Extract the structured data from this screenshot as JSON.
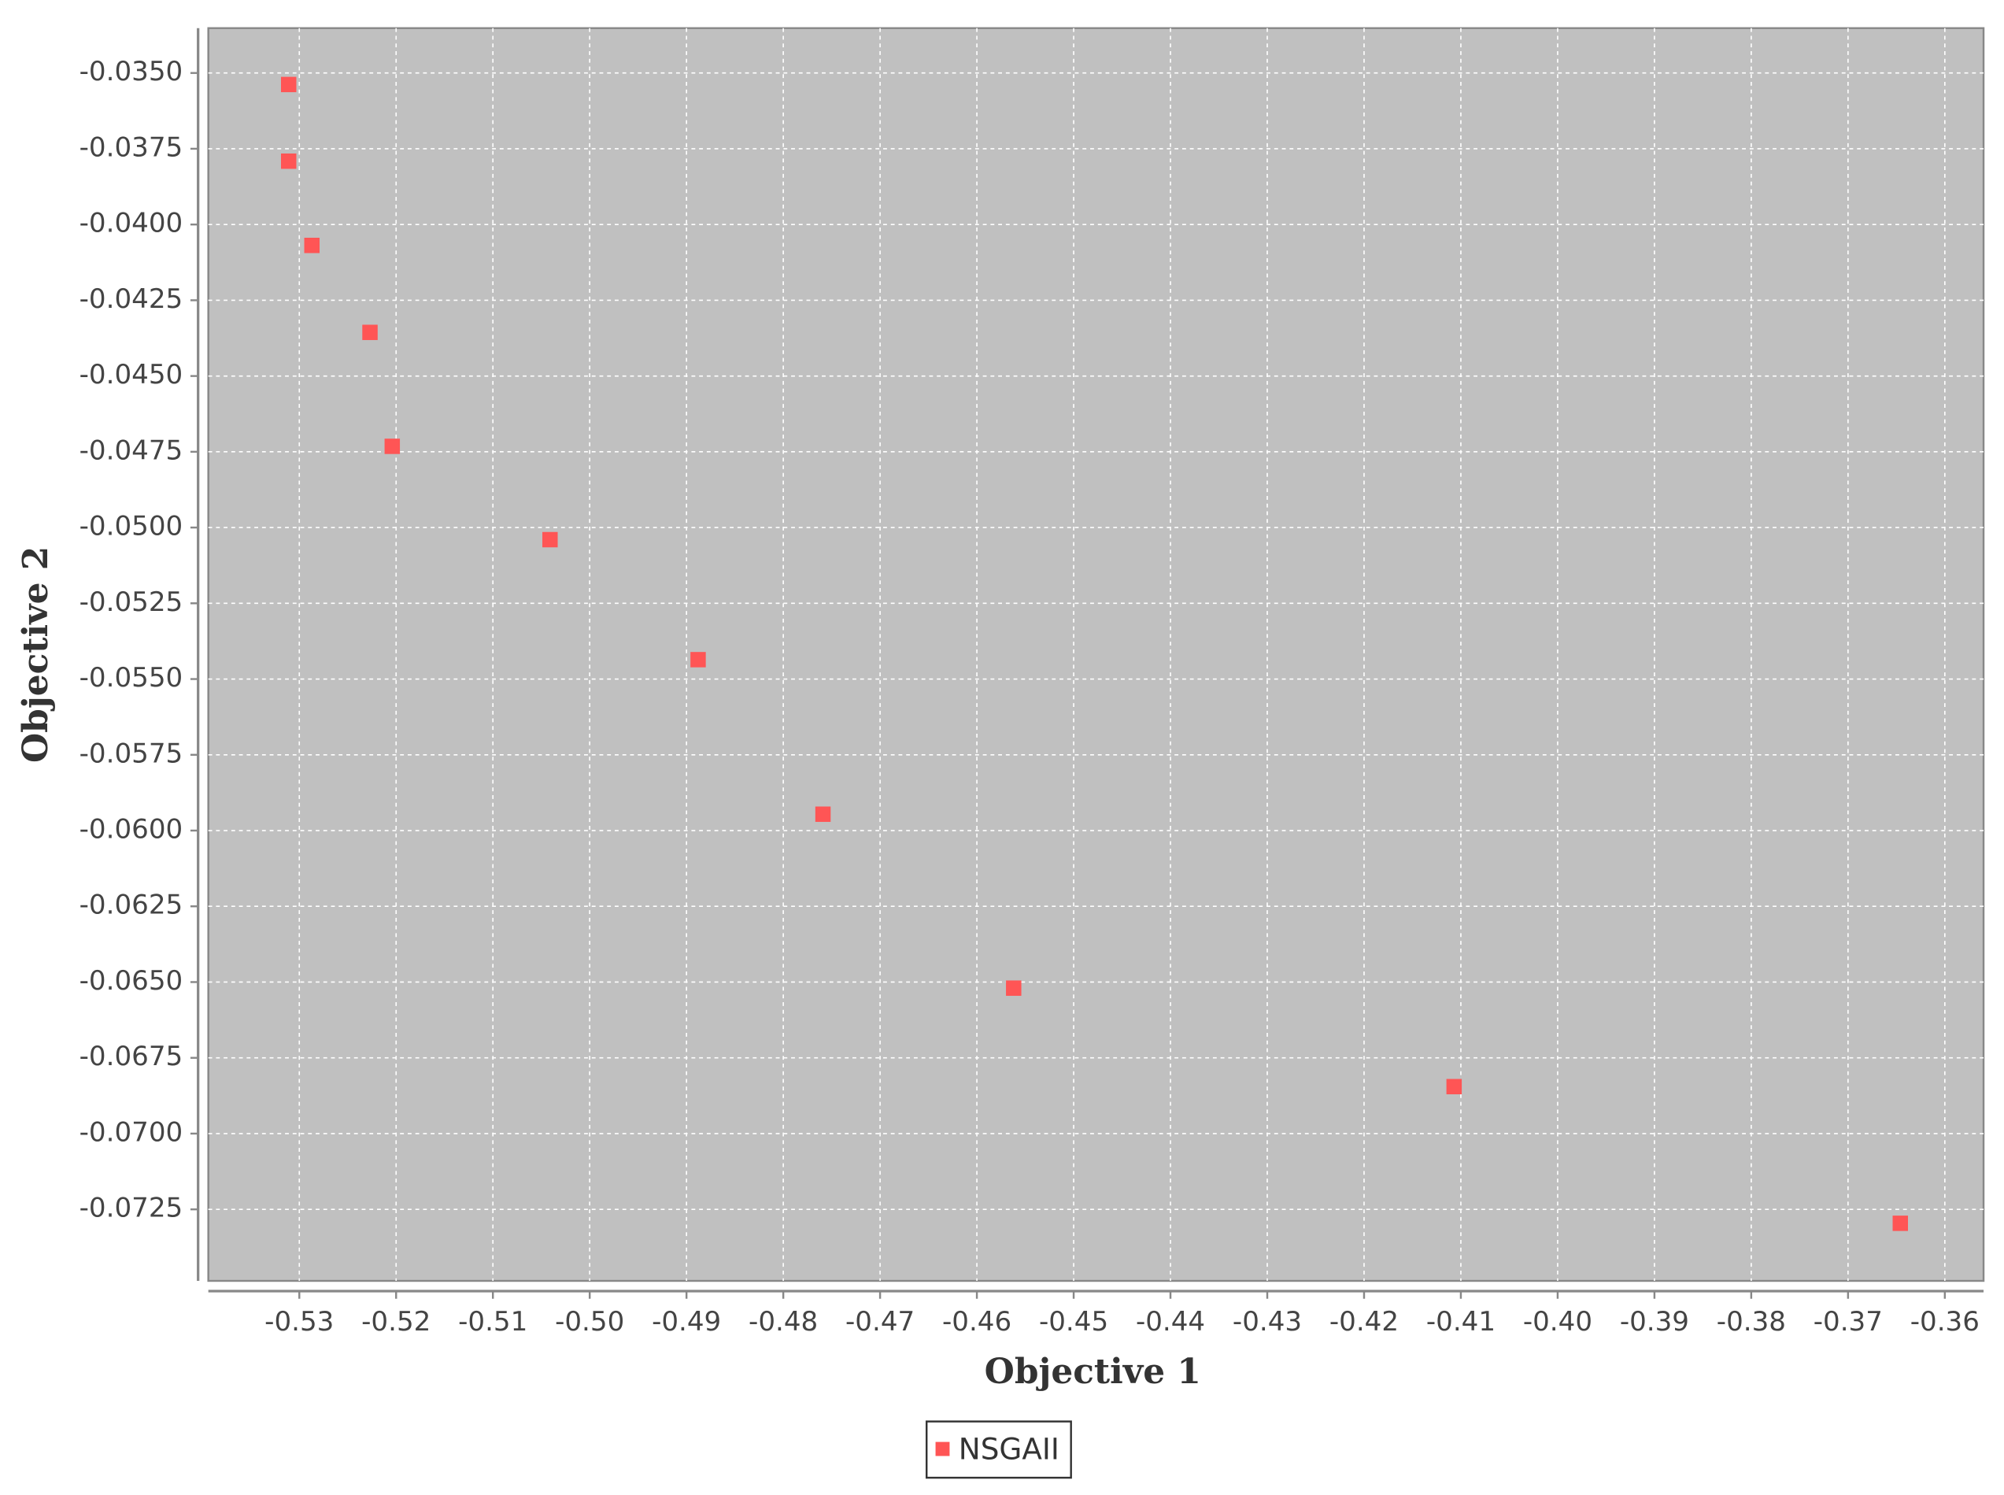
{
  "chart_data": {
    "type": "scatter",
    "x_label": "Objective 1",
    "y_label": "Objective 2",
    "xlim": [
      -0.5394,
      -0.356
    ],
    "ylim": [
      -0.07486,
      -0.03352
    ],
    "xticks": [
      -0.53,
      -0.52,
      -0.51,
      {
        "value": -0.5,
        "label": "-0.50"
      },
      -0.49,
      -0.48,
      -0.47,
      -0.46,
      -0.45,
      -0.44,
      -0.43,
      -0.42,
      -0.41,
      {
        "value": -0.4,
        "label": "-0.40"
      },
      -0.39,
      -0.38,
      -0.37,
      -0.36
    ],
    "yticks": [
      {
        "value": -0.035,
        "label": "-0.0350"
      },
      {
        "value": -0.0375,
        "label": "-0.0375"
      },
      {
        "value": -0.04,
        "label": "-0.0400"
      },
      {
        "value": -0.0425,
        "label": "-0.0425"
      },
      {
        "value": -0.045,
        "label": "-0.0450"
      },
      {
        "value": -0.0475,
        "label": "-0.0475"
      },
      {
        "value": -0.05,
        "label": "-0.0500"
      },
      {
        "value": -0.0525,
        "label": "-0.0525"
      },
      {
        "value": -0.055,
        "label": "-0.0550"
      },
      {
        "value": -0.0575,
        "label": "-0.0575"
      },
      {
        "value": -0.06,
        "label": "-0.0600"
      },
      {
        "value": -0.0625,
        "label": "-0.0625"
      },
      {
        "value": -0.065,
        "label": "-0.0650"
      },
      {
        "value": -0.0675,
        "label": "-0.0675"
      },
      {
        "value": -0.07,
        "label": "-0.0700"
      },
      {
        "value": -0.0725,
        "label": "-0.0725"
      }
    ],
    "grid": true,
    "legend": "bottom",
    "series": [
      {
        "name": "NSGAII",
        "color": "#ff5555",
        "x": [
          -0.5311,
          -0.5311,
          -0.5287,
          -0.5227,
          -0.5204,
          -0.5041,
          -0.4888,
          -0.4759,
          -0.4562,
          -0.4107,
          -0.3646
        ],
        "values": [
          -0.03538,
          -0.03791,
          -0.04069,
          -0.04356,
          -0.04732,
          -0.0504,
          -0.05436,
          -0.05946,
          -0.0652,
          -0.06845,
          -0.07296
        ]
      }
    ]
  }
}
